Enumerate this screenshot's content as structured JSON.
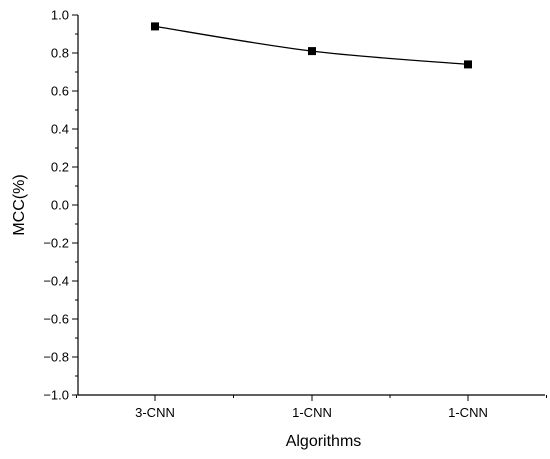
{
  "chart_data": {
    "type": "line",
    "title": "",
    "xlabel": "Algorithms",
    "ylabel": "MCC(%)",
    "categories": [
      "3-CNN",
      "1-CNN",
      "1-CNN"
    ],
    "series": [
      {
        "values": [
          0.94,
          0.81,
          0.74
        ],
        "color": "#000000",
        "marker": "square",
        "smooth": true
      }
    ],
    "ylim": [
      -1.0,
      1.0
    ],
    "yticks": [
      -1.0,
      -0.8,
      -0.6,
      -0.4,
      -0.2,
      0.0,
      0.2,
      0.4,
      0.6,
      0.8,
      1.0
    ],
    "ytick_labels": [
      "−1.0",
      "−0.8",
      "−0.6",
      "−0.4",
      "−0.2",
      "0.0",
      "0.2",
      "0.4",
      "0.6",
      "0.8",
      "1.0"
    ],
    "grid": false,
    "legend": "none",
    "frame": "open"
  }
}
